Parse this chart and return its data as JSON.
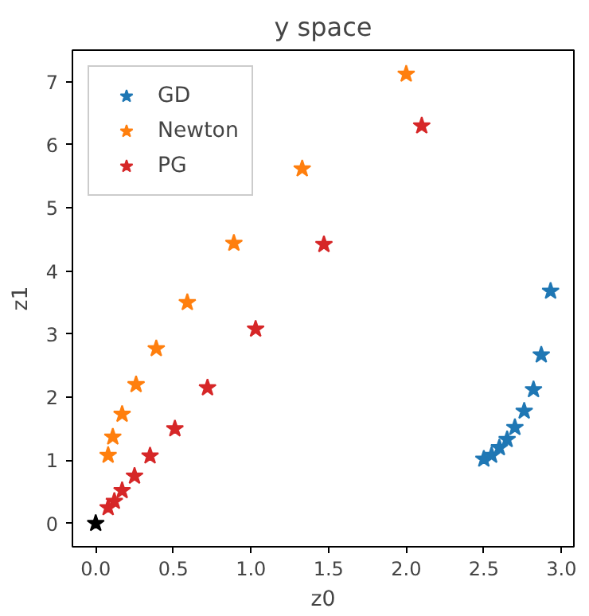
{
  "chart_data": {
    "type": "scatter",
    "title": "y space",
    "xlabel": "z0",
    "ylabel": "z1",
    "marker": "star",
    "legend": "top left",
    "grid": false,
    "xlim": [
      -0.15,
      3.08
    ],
    "ylim": [
      -0.37,
      7.5
    ],
    "xticks": [
      {
        "value": 0,
        "label": "0.0"
      },
      {
        "value": 0.5,
        "label": "0.5"
      },
      {
        "value": 1,
        "label": "1.0"
      },
      {
        "value": 1.5,
        "label": "1.5"
      },
      {
        "value": 2,
        "label": "2.0"
      },
      {
        "value": 2.5,
        "label": "2.5"
      },
      {
        "value": 3,
        "label": "3.0"
      }
    ],
    "yticks": [
      0,
      1,
      2,
      3,
      4,
      5,
      6,
      7
    ],
    "series": [
      {
        "name": "GD",
        "color": "#1f77b4",
        "x": [
          2.5,
          2.55,
          2.6,
          2.65,
          2.7,
          2.76,
          2.82,
          2.87,
          2.93
        ],
        "values": [
          1.02,
          1.08,
          1.2,
          1.33,
          1.52,
          1.78,
          2.12,
          2.67,
          3.68
        ]
      },
      {
        "name": "Newton",
        "color": "#ff7f0e",
        "x": [
          0.08,
          0.11,
          0.17,
          0.26,
          0.39,
          0.59,
          0.89,
          1.33,
          2.0
        ],
        "values": [
          1.08,
          1.37,
          1.73,
          2.2,
          2.77,
          3.5,
          4.44,
          5.62,
          7.12
        ]
      },
      {
        "name": "PG",
        "color": "#d62728",
        "x": [
          0.08,
          0.12,
          0.17,
          0.25,
          0.35,
          0.51,
          0.72,
          1.03,
          1.47,
          2.1
        ],
        "values": [
          0.25,
          0.35,
          0.52,
          0.75,
          1.07,
          1.5,
          2.15,
          3.08,
          4.42,
          6.3
        ]
      },
      {
        "color": "#000000",
        "x": [
          0
        ],
        "values": [
          0
        ]
      }
    ]
  }
}
